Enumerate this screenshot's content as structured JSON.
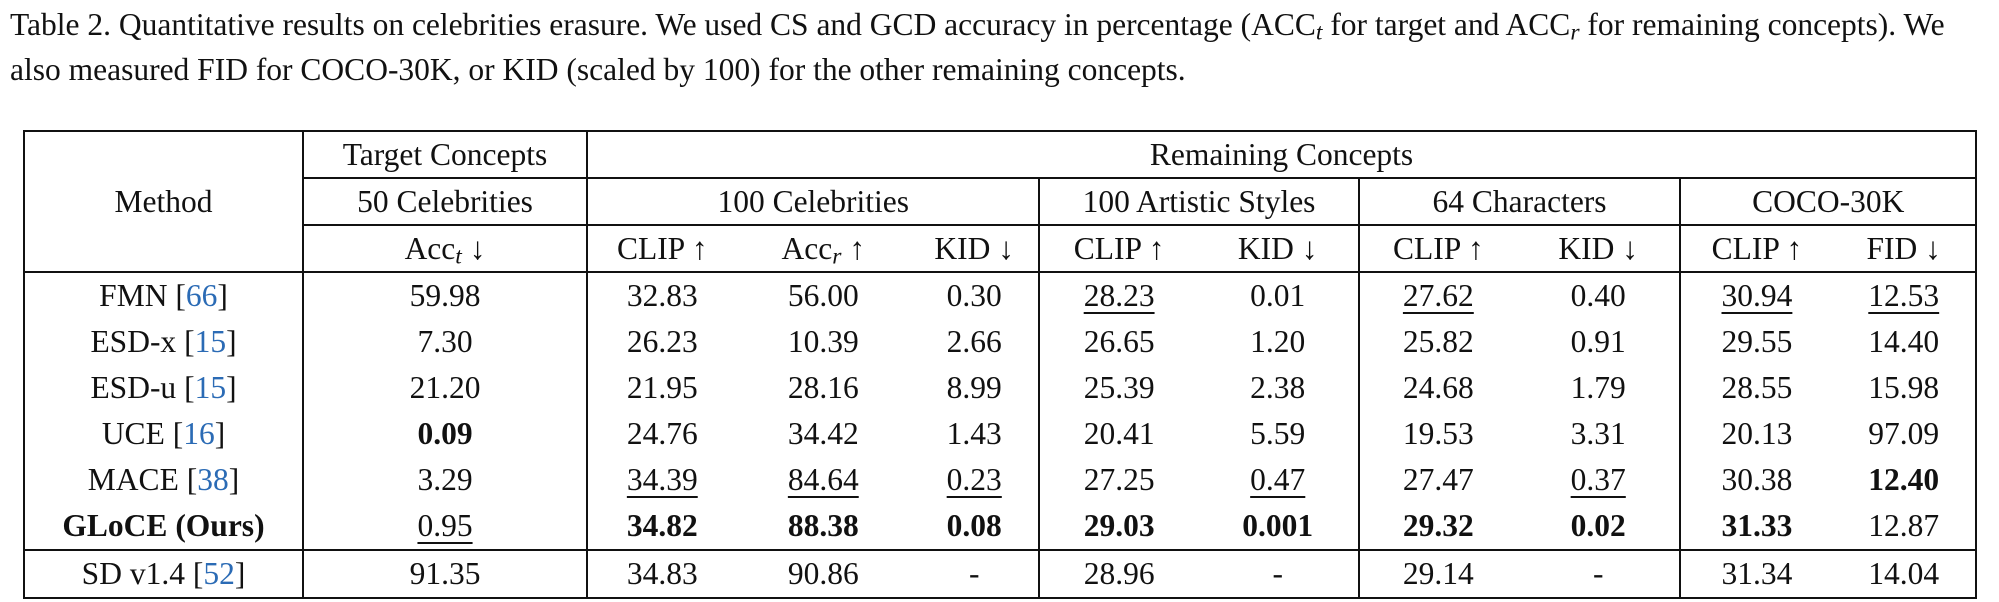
{
  "caption": {
    "part1": "Table 2. Quantitative results on celebrities erasure. We used CS and GCD accuracy in percentage (ACC",
    "sub_t": "t",
    "part2": " for target and ACC",
    "sub_r": "r",
    "part3": " for remaining concepts). We also measured FID for COCO-30K, or KID (scaled by 100) for the other remaining concepts."
  },
  "headers": {
    "method": "Method",
    "target_group": "Target Concepts",
    "remaining_group": "Remaining Concepts",
    "target_sub": "50 Celebrities",
    "groups": [
      "100 Celebrities",
      "100 Artistic Styles",
      "64 Characters",
      "COCO-30K"
    ],
    "acc_t_base": "Acc",
    "acc_t_sub": "t",
    "acc_t_arrow": " ↓",
    "metrics": {
      "clip": "CLIP ↑",
      "acc_r_base": "Acc",
      "acc_r_sub": "r",
      "acc_r_arrow": " ↑",
      "kid": "KID ↓",
      "fid": "FID ↓"
    }
  },
  "rows": [
    {
      "method": "FMN",
      "cite": "66",
      "values": [
        "59.98",
        "32.83",
        "56.00",
        "0.30",
        "28.23",
        "0.01",
        "27.62",
        "0.40",
        "30.94",
        "12.53"
      ],
      "styles": [
        "",
        "",
        "",
        "",
        "u",
        "",
        "u",
        "",
        "u",
        "u"
      ]
    },
    {
      "method": "ESD-x",
      "cite": "15",
      "values": [
        "7.30",
        "26.23",
        "10.39",
        "2.66",
        "26.65",
        "1.20",
        "25.82",
        "0.91",
        "29.55",
        "14.40"
      ],
      "styles": [
        "",
        "",
        "",
        "",
        "",
        "",
        "",
        "",
        "",
        ""
      ]
    },
    {
      "method": "ESD-u",
      "cite": "15",
      "values": [
        "21.20",
        "21.95",
        "28.16",
        "8.99",
        "25.39",
        "2.38",
        "24.68",
        "1.79",
        "28.55",
        "15.98"
      ],
      "styles": [
        "",
        "",
        "",
        "",
        "",
        "",
        "",
        "",
        "",
        ""
      ]
    },
    {
      "method": "UCE",
      "cite": "16",
      "values": [
        "0.09",
        "24.76",
        "34.42",
        "1.43",
        "20.41",
        "5.59",
        "19.53",
        "3.31",
        "20.13",
        "97.09"
      ],
      "styles": [
        "b",
        "",
        "",
        "",
        "",
        "",
        "",
        "",
        "",
        ""
      ]
    },
    {
      "method": "MACE",
      "cite": "38",
      "values": [
        "3.29",
        "34.39",
        "84.64",
        "0.23",
        "27.25",
        "0.47",
        "27.47",
        "0.37",
        "30.38",
        "12.40"
      ],
      "styles": [
        "",
        "u",
        "u",
        "u",
        "",
        "u",
        "",
        "u",
        "",
        "b"
      ]
    },
    {
      "method": "GLoCE (Ours)",
      "cite": "",
      "values": [
        "0.95",
        "34.82",
        "88.38",
        "0.08",
        "29.03",
        "0.001",
        "29.32",
        "0.02",
        "31.33",
        "12.87"
      ],
      "styles": [
        "u",
        "b",
        "b",
        "b",
        "b",
        "b",
        "b",
        "b",
        "b",
        ""
      ]
    }
  ],
  "baseline": {
    "method": "SD v1.4",
    "cite": "52",
    "values": [
      "91.35",
      "34.83",
      "90.86",
      "-",
      "28.96",
      "-",
      "29.14",
      "-",
      "31.34",
      "14.04"
    ]
  }
}
